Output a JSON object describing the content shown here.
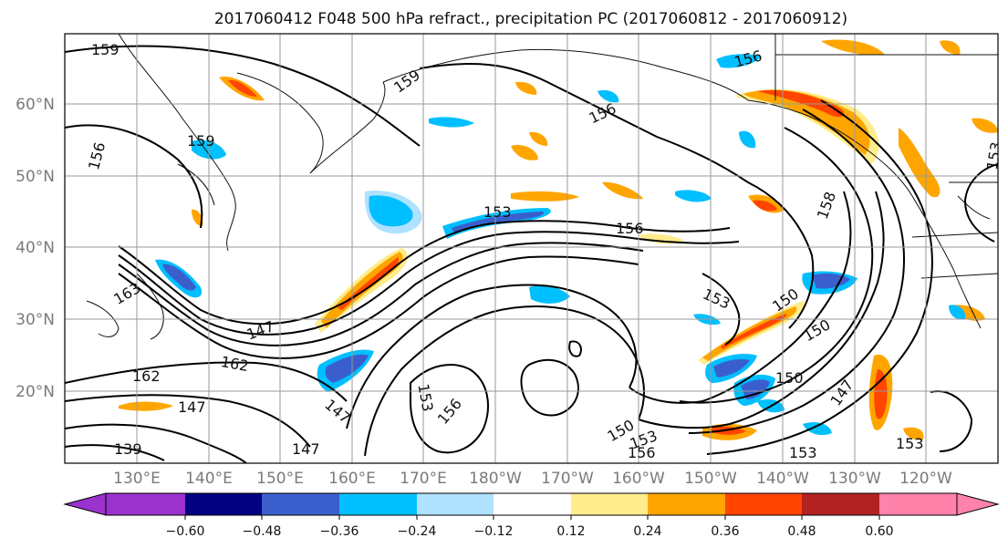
{
  "title": "2017060412 F048 500 hPa refract., precipitation PC (2017060812 - 2017060912)",
  "lat_labels": [
    "60°N",
    "50°N",
    "40°N",
    "30°N",
    "20°N"
  ],
  "lon_labels": [
    "130°E",
    "140°E",
    "150°E",
    "160°E",
    "170°E",
    "180°W",
    "170°W",
    "160°W",
    "150°W",
    "140°W",
    "130°W",
    "120°W"
  ],
  "contour_labels": [
    "159",
    "159",
    "156",
    "159",
    "156",
    "156",
    "153",
    "156",
    "153",
    "158",
    "153",
    "150",
    "147",
    "162",
    "162",
    "147",
    "153",
    "156",
    "147",
    "147",
    "150",
    "150",
    "147",
    "153",
    "156",
    "150",
    "153",
    "153",
    "139",
    "163"
  ],
  "colorbar": {
    "ticks": [
      "−0.60",
      "−0.48",
      "−0.36",
      "−0.24",
      "−0.12",
      "0.12",
      "0.24",
      "0.36",
      "0.48",
      "0.60"
    ],
    "colors": [
      "#9a32cd",
      "#000080",
      "#3a5fcd",
      "#00bfff",
      "#b0e2ff",
      "#ffffff",
      "#ffec8b",
      "#ffa500",
      "#ff4500",
      "#b22222",
      "#ff82ab"
    ]
  }
}
